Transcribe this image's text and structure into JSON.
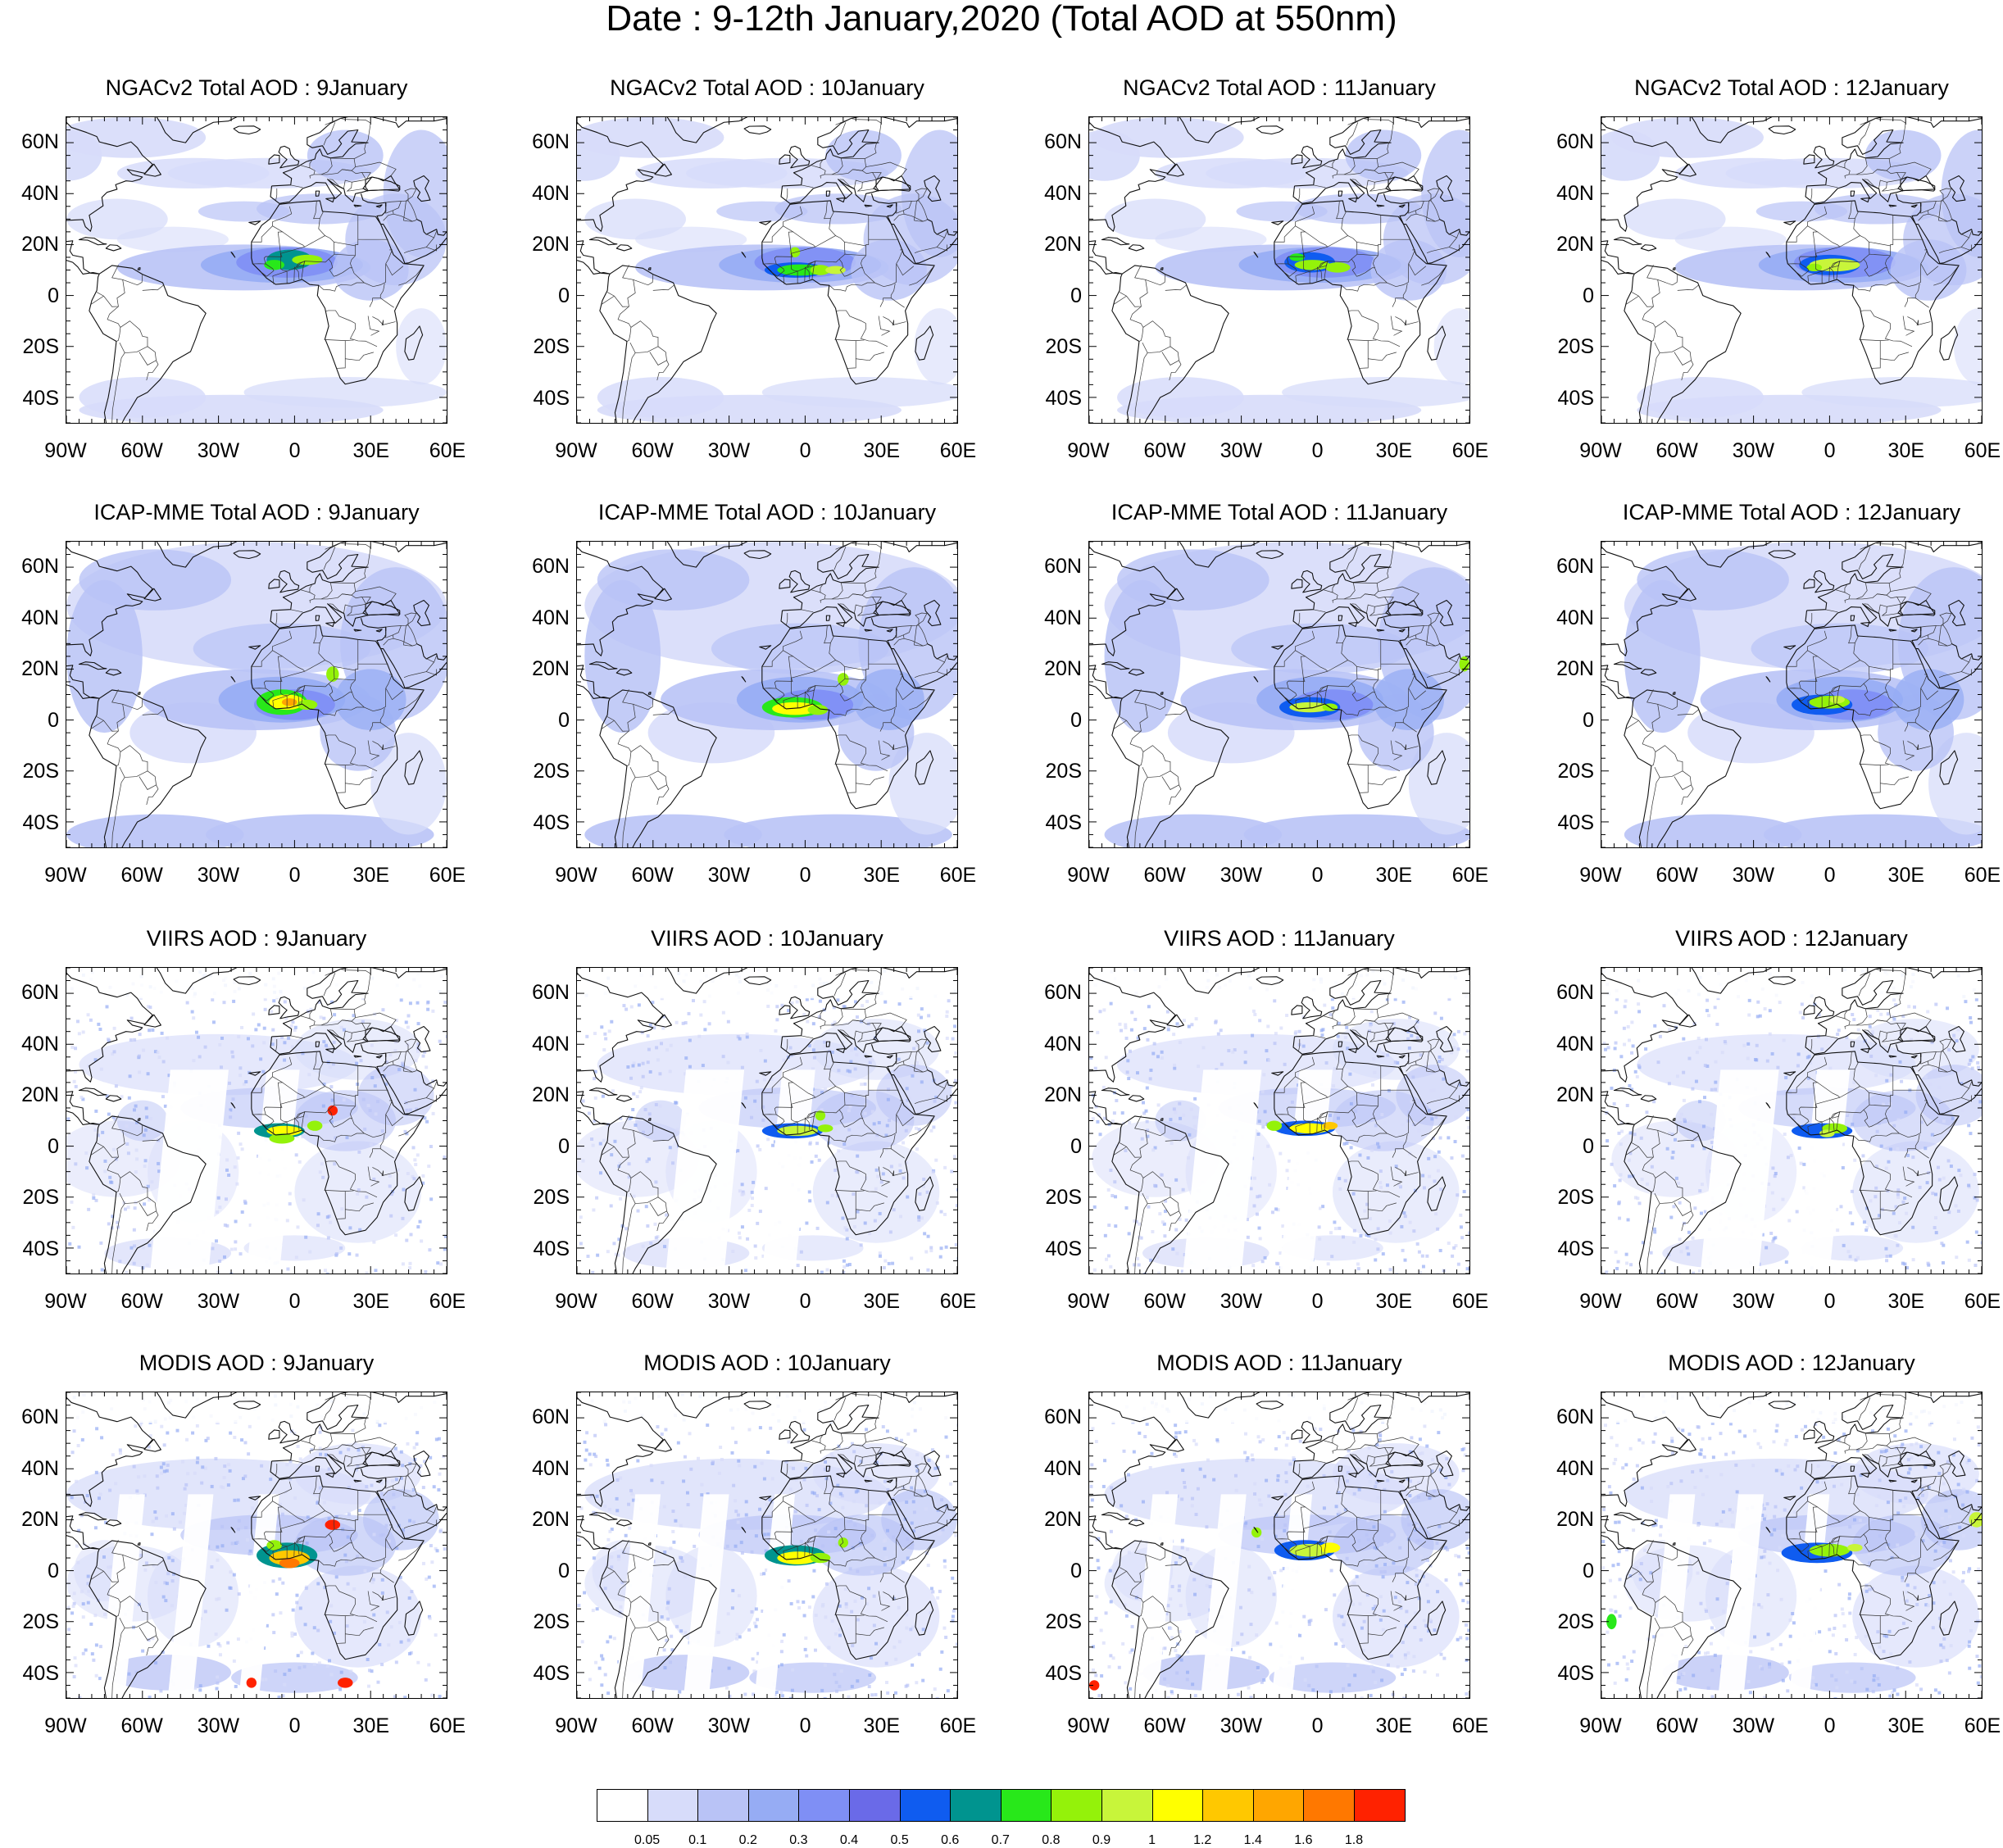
{
  "title": "Date : 9-12th January,2020 (Total AOD at 550nm)",
  "rows": [
    {
      "product": "NGACv2",
      "titles": [
        "NGACv2 Total AOD : 9January",
        "NGACv2 Total AOD : 10January",
        "NGACv2 Total AOD : 11January",
        "NGACv2 Total AOD : 12January"
      ]
    },
    {
      "product": "ICAP-MME",
      "titles": [
        "ICAP-MME Total AOD : 9January",
        "ICAP-MME Total AOD : 10January",
        "ICAP-MME Total AOD : 11January",
        "ICAP-MME Total AOD : 12January"
      ]
    },
    {
      "product": "VIIRS",
      "titles": [
        "VIIRS AOD : 9January",
        "VIIRS AOD : 10January",
        "VIIRS AOD : 11January",
        "VIIRS AOD : 12January"
      ]
    },
    {
      "product": "MODIS",
      "titles": [
        "MODIS AOD : 9January",
        "MODIS AOD : 10January",
        "MODIS AOD : 11January",
        "MODIS AOD : 12January"
      ]
    }
  ],
  "lat_ticks": [
    "60N",
    "40N",
    "20N",
    "0",
    "20S",
    "40S"
  ],
  "lon_ticks": [
    "90W",
    "60W",
    "30W",
    "0",
    "30E",
    "60E"
  ],
  "map_extent": {
    "lon": [
      -90,
      60
    ],
    "lat": [
      -50,
      70
    ]
  },
  "colorbar": {
    "colors": [
      "#ffffff",
      "#d7dcfa",
      "#b9c3f6",
      "#96acf4",
      "#7f8ff5",
      "#6a6ae8",
      "#0f5cf0",
      "#00948f",
      "#28e81a",
      "#94f20a",
      "#c8f53a",
      "#ffff00",
      "#ffc800",
      "#ffa600",
      "#ff7800",
      "#ff2200"
    ],
    "labels": [
      "0.05",
      "0.1",
      "0.2",
      "0.3",
      "0.4",
      "0.5",
      "0.6",
      "0.7",
      "0.8",
      "0.9",
      "1",
      "1.2",
      "1.4",
      "1.6",
      "1.8"
    ]
  }
}
